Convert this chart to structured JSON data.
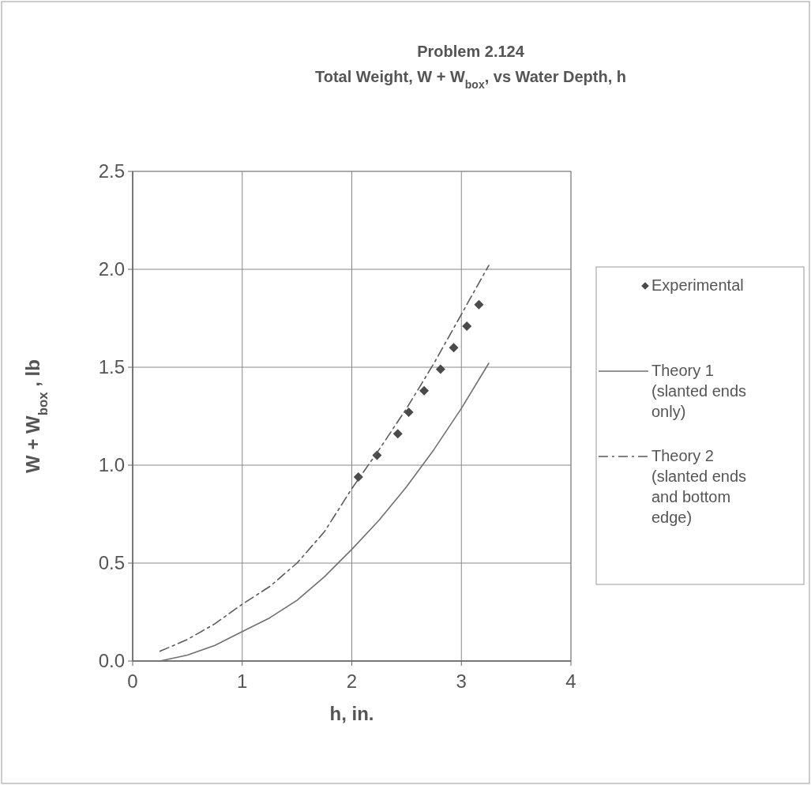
{
  "chart_data": {
    "type": "line",
    "title": "Problem 2.124",
    "subtitle": "Total Weight, W + W$_{box}$, vs Water Depth, h",
    "xlabel": "h, in.",
    "ylabel": "W + W$_{box}$ , lb",
    "xlim": [
      0,
      4
    ],
    "ylim": [
      0,
      2.5
    ],
    "xticks": [
      0,
      1,
      2,
      3,
      4
    ],
    "yticks": [
      {
        "value": 0,
        "label": "0.0"
      },
      {
        "value": 0.5,
        "label": "0.5"
      },
      {
        "value": 1,
        "label": "1.0"
      },
      {
        "value": 1.5,
        "label": "1.5"
      },
      {
        "value": 2,
        "label": "2.0"
      },
      {
        "value": 2.5,
        "label": "2.5"
      }
    ],
    "grid": true,
    "legend": "right",
    "series": [
      {
        "name": "Experimental",
        "type": "scatter",
        "marker": "diamond",
        "color": "#4a4a4a",
        "x": [
          2.06,
          2.23,
          2.42,
          2.52,
          2.66,
          2.81,
          2.93,
          3.05,
          3.16
        ],
        "values": [
          0.94,
          1.05,
          1.16,
          1.27,
          1.38,
          1.49,
          1.6,
          1.71,
          1.82
        ]
      },
      {
        "name": "Theory 1 (slanted ends only)",
        "line_style": "solid",
        "color": "#707070",
        "x": [
          0.25,
          0.5,
          0.75,
          1,
          1.25,
          1.5,
          1.75,
          2,
          2.25,
          2.5,
          2.75,
          3,
          3.25
        ],
        "values": [
          0,
          0.03,
          0.08,
          0.15,
          0.22,
          0.31,
          0.43,
          0.57,
          0.72,
          0.89,
          1.08,
          1.29,
          1.52
        ]
      },
      {
        "name": "Theory 2 (slanted ends and bottom edge)",
        "line_style": "dashed",
        "color": "#5a5a5a",
        "x": [
          0.25,
          0.5,
          0.75,
          1,
          1.25,
          1.5,
          1.75,
          2,
          2.25,
          2.5,
          2.75,
          3,
          3.25
        ],
        "values": [
          0.05,
          0.11,
          0.19,
          0.29,
          0.38,
          0.5,
          0.66,
          0.88,
          1.08,
          1.29,
          1.52,
          1.77,
          2.02
        ]
      }
    ]
  }
}
